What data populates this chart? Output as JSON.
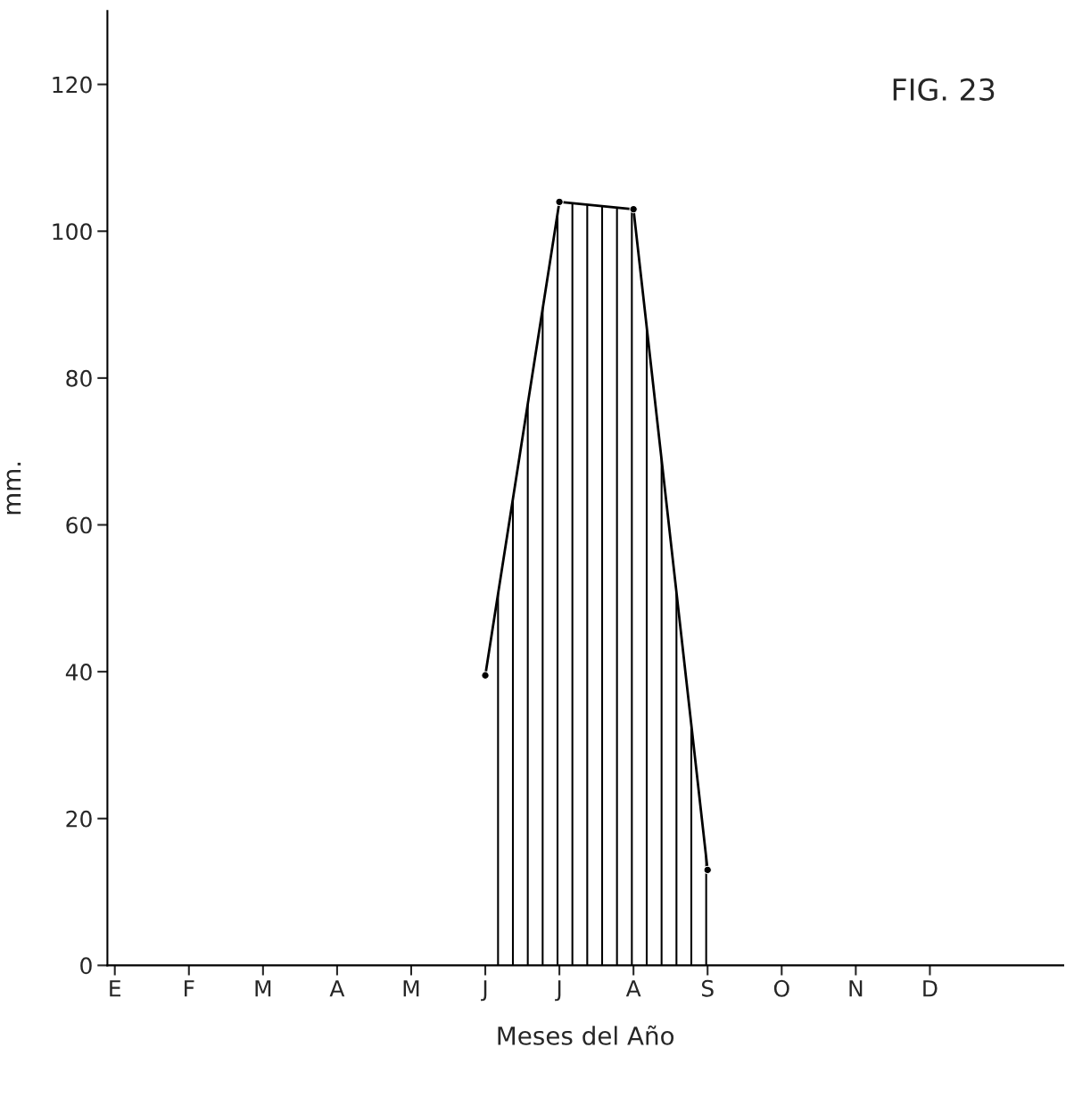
{
  "chart_data": {
    "type": "area",
    "xlabel": "Meses del Año",
    "ylabel": "mm.",
    "annotations": [
      "FIG. 23"
    ],
    "ylim": [
      0,
      130
    ],
    "categories": [
      "E",
      "F",
      "M",
      "A",
      "M",
      "J",
      "J",
      "A",
      "S",
      "O",
      "N",
      "D"
    ],
    "yticks": [
      0,
      20,
      40,
      60,
      80,
      100,
      120
    ],
    "grid": false,
    "legend": false,
    "series": [
      {
        "color": "#000000",
        "marker": "circle",
        "values": [
          null,
          null,
          null,
          null,
          null,
          39.5,
          104,
          103,
          13,
          null,
          null,
          null
        ]
      }
    ]
  }
}
